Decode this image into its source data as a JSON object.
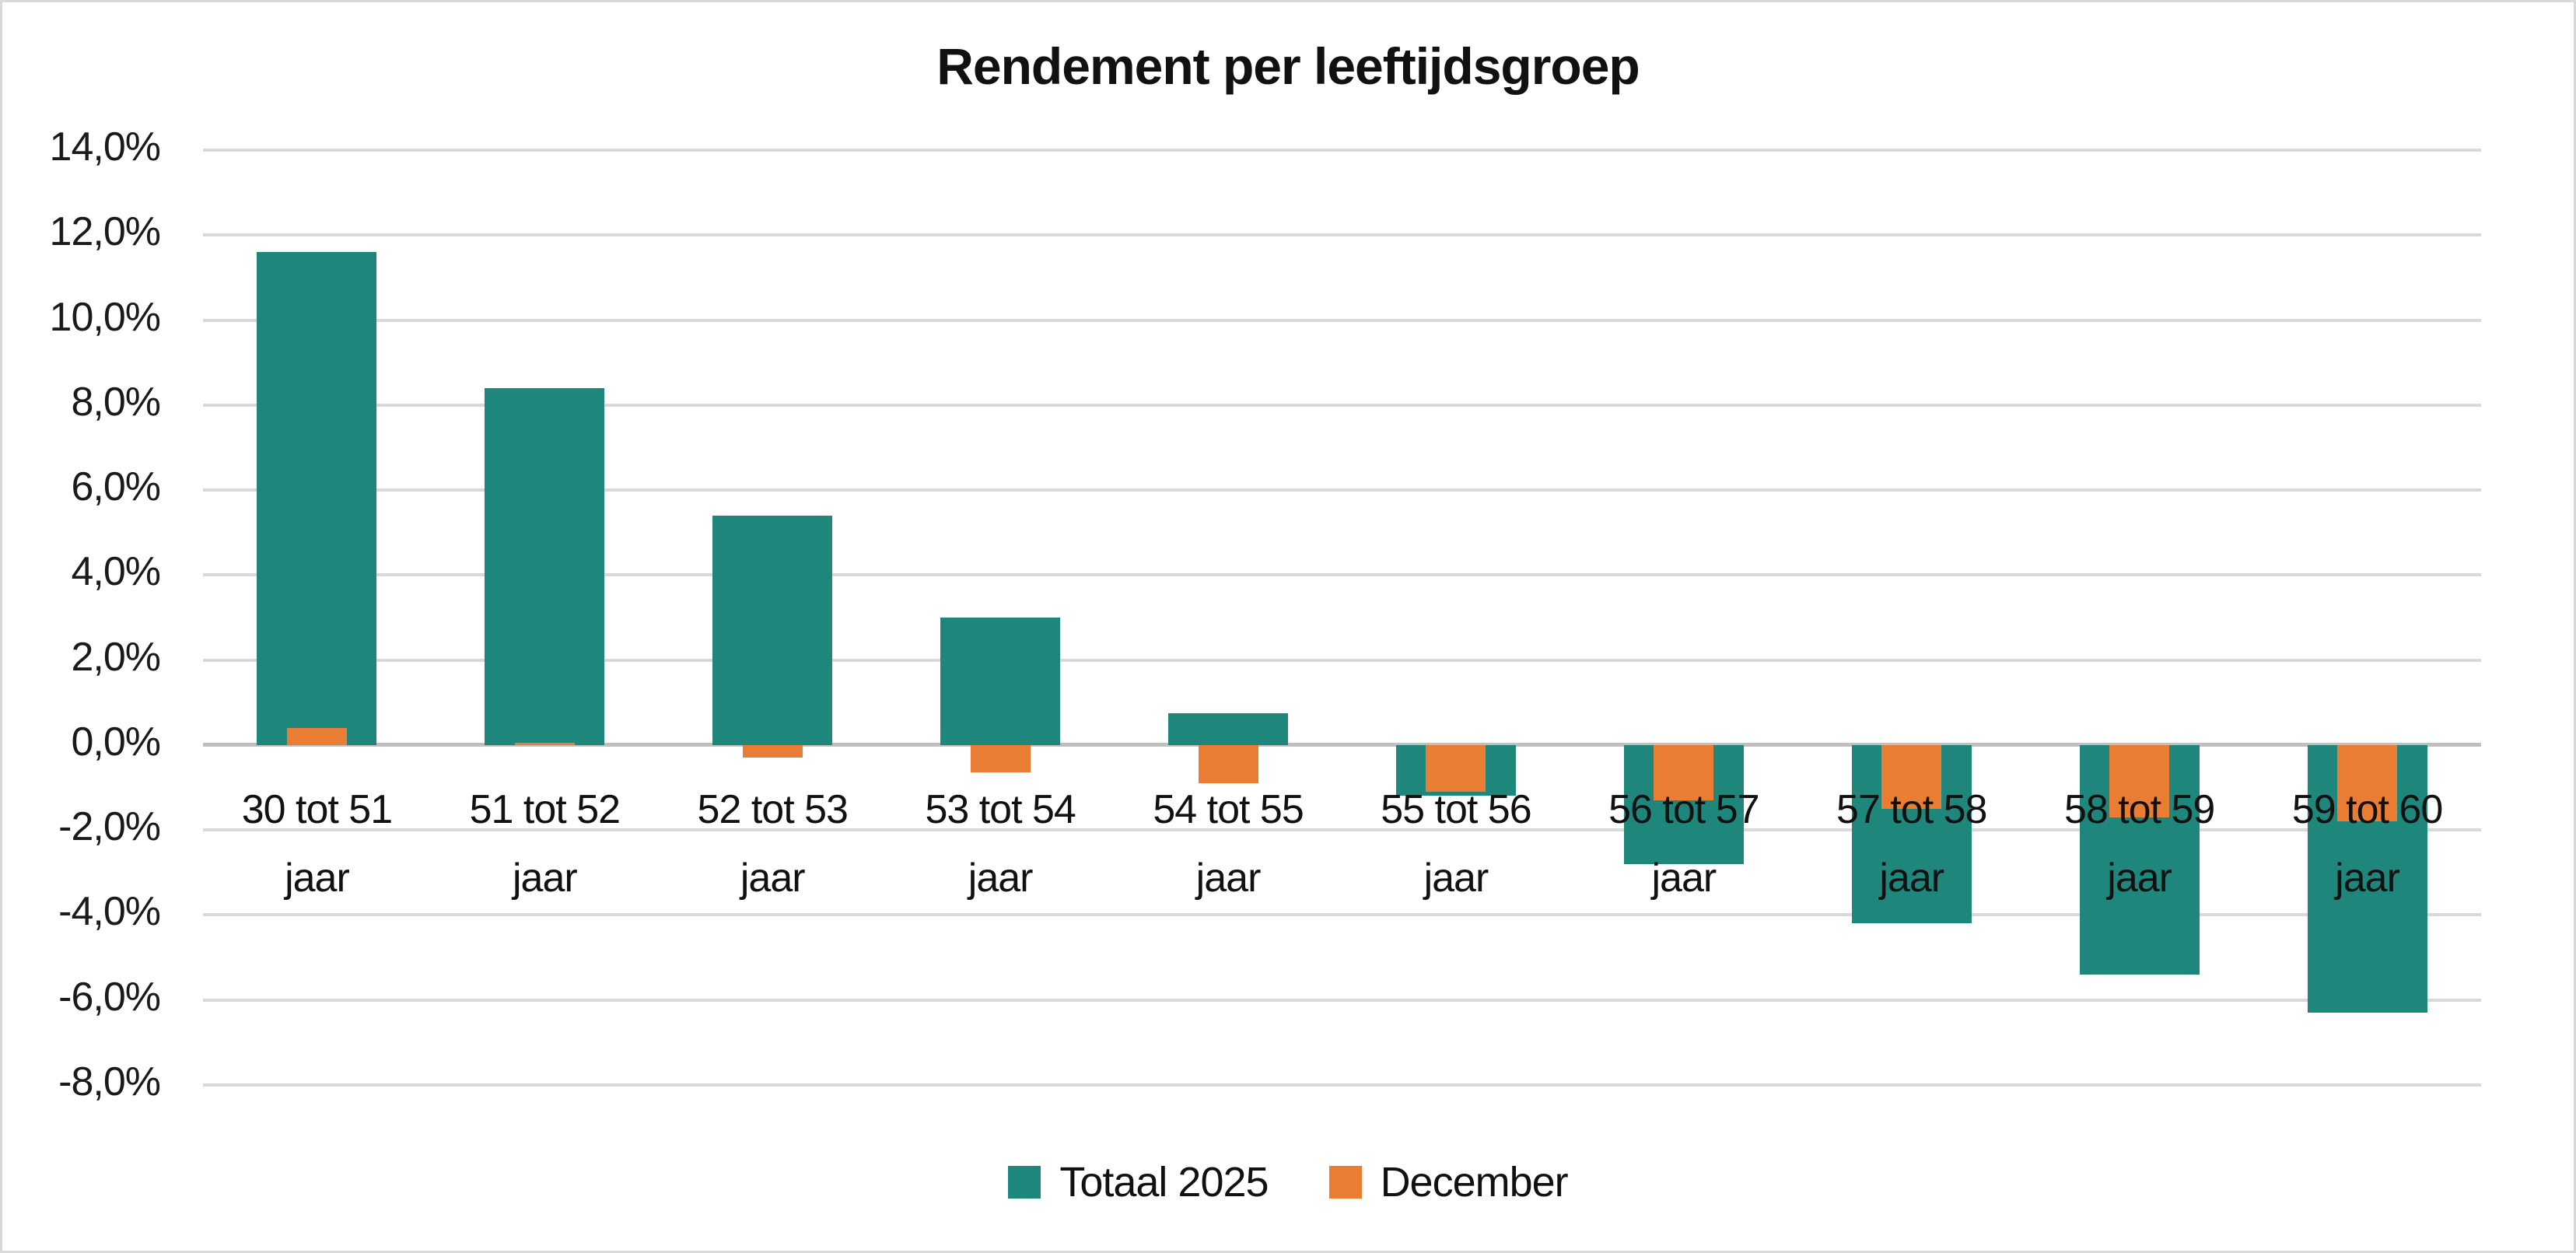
{
  "title": "Rendement per leeftijdsgroep",
  "legend": {
    "items": [
      {
        "label": "Totaal 2025",
        "color": "#1f867c"
      },
      {
        "label": "December",
        "color": "#e87d33"
      }
    ]
  },
  "y_axis": {
    "tick_labels": [
      "14,0%",
      "12,0%",
      "10,0%",
      "8,0%",
      "6,0%",
      "4,0%",
      "2,0%",
      "0,0%",
      "-2,0%",
      "-4,0%",
      "-6,0%",
      "-8,0%"
    ]
  },
  "colors": {
    "teal": "#1f867c",
    "orange": "#e87d33",
    "gridline": "#d9d9d9",
    "zero_axis": "#bfbfbf",
    "border": "#d9d9d9",
    "text": "#111111"
  },
  "chart_data": {
    "type": "bar",
    "title": "Rendement per leeftijdsgroep",
    "categories": [
      "30 tot 51 jaar",
      "51 tot 52 jaar",
      "52 tot 53 jaar",
      "53 tot 54 jaar",
      "54 tot 55 jaar",
      "55 tot 56 jaar",
      "56 tot 57 jaar",
      "57 tot 58 jaar",
      "58 tot 59 jaar",
      "59 tot 60 jaar"
    ],
    "category_lines": [
      [
        "30 tot 51",
        "jaar"
      ],
      [
        "51 tot 52",
        "jaar"
      ],
      [
        "52 tot 53",
        "jaar"
      ],
      [
        "53 tot 54",
        "jaar"
      ],
      [
        "54 tot 55",
        "jaar"
      ],
      [
        "55 tot 56",
        "jaar"
      ],
      [
        "56 tot 57",
        "jaar"
      ],
      [
        "57 tot 58",
        "jaar"
      ],
      [
        "58 tot 59",
        "jaar"
      ],
      [
        "59 tot 60",
        "jaar"
      ]
    ],
    "series": [
      {
        "name": "Totaal 2025",
        "color": "#1f867c",
        "values": [
          11.6,
          8.4,
          5.4,
          3.0,
          0.75,
          -1.2,
          -2.8,
          -4.2,
          -5.4,
          -6.3
        ]
      },
      {
        "name": "December",
        "color": "#e87d33",
        "values": [
          0.4,
          0.05,
          -0.3,
          -0.65,
          -0.9,
          -1.1,
          -1.3,
          -1.5,
          -1.7,
          -1.8
        ]
      }
    ],
    "xlabel": "",
    "ylabel": "",
    "ylim": [
      -8,
      14
    ],
    "ytick_step": 2,
    "yvalue_format": "percent-dutch-comma-1-decimal",
    "grid": true,
    "legend_position": "bottom"
  }
}
